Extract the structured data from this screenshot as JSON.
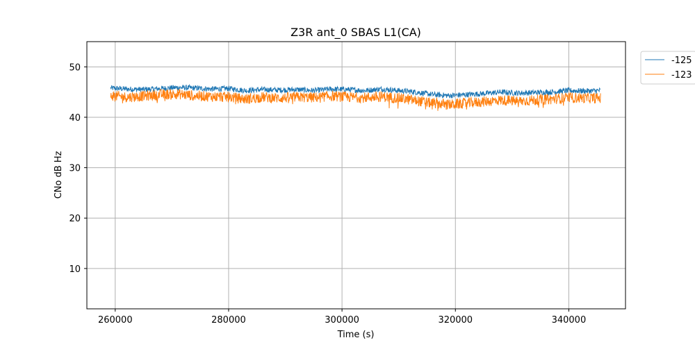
{
  "chart_data": {
    "type": "line",
    "title": "Z3R ant_0 SBAS L1(CA)",
    "xlabel": "Time (s)",
    "ylabel": "CNo dB Hz",
    "xlim": [
      255000,
      350000
    ],
    "ylim": [
      2,
      55
    ],
    "xticks": [
      260000,
      280000,
      300000,
      320000,
      340000
    ],
    "yticks": [
      10,
      20,
      30,
      40,
      50
    ],
    "grid": true,
    "legend_position": "outside-top-right",
    "series": [
      {
        "name": "-125",
        "color": "#1f77b4",
        "x": [
          259200,
          262000,
          265000,
          268000,
          271000,
          274000,
          277000,
          280000,
          283000,
          286000,
          289000,
          292000,
          295000,
          298000,
          301000,
          304000,
          307000,
          310000,
          313000,
          316000,
          319000,
          322000,
          325000,
          328000,
          331000,
          334000,
          337000,
          340000,
          343000,
          345600
        ],
        "y": [
          45.8,
          45.6,
          45.5,
          45.7,
          45.9,
          45.8,
          45.6,
          45.7,
          45.3,
          45.5,
          45.4,
          45.5,
          45.3,
          45.6,
          45.5,
          45.3,
          45.6,
          45.3,
          45.0,
          44.5,
          44.3,
          44.5,
          44.7,
          45.0,
          44.8,
          44.9,
          45.0,
          45.3,
          45.2,
          45.3
        ]
      },
      {
        "name": "-123",
        "color": "#ff7f0e",
        "x": [
          259200,
          262000,
          265000,
          268000,
          271000,
          274000,
          277000,
          280000,
          283000,
          286000,
          289000,
          292000,
          295000,
          298000,
          301000,
          304000,
          307000,
          310000,
          313000,
          316000,
          319000,
          322000,
          325000,
          328000,
          331000,
          334000,
          337000,
          340000,
          343000,
          345600
        ],
        "y": [
          44.3,
          44.0,
          44.2,
          44.5,
          44.6,
          44.3,
          44.1,
          44.0,
          43.6,
          44.0,
          43.8,
          44.0,
          43.9,
          44.2,
          44.0,
          43.9,
          44.1,
          43.8,
          43.3,
          42.8,
          42.5,
          42.8,
          43.1,
          43.4,
          43.2,
          43.4,
          43.6,
          43.9,
          43.8,
          43.8
        ]
      }
    ]
  }
}
